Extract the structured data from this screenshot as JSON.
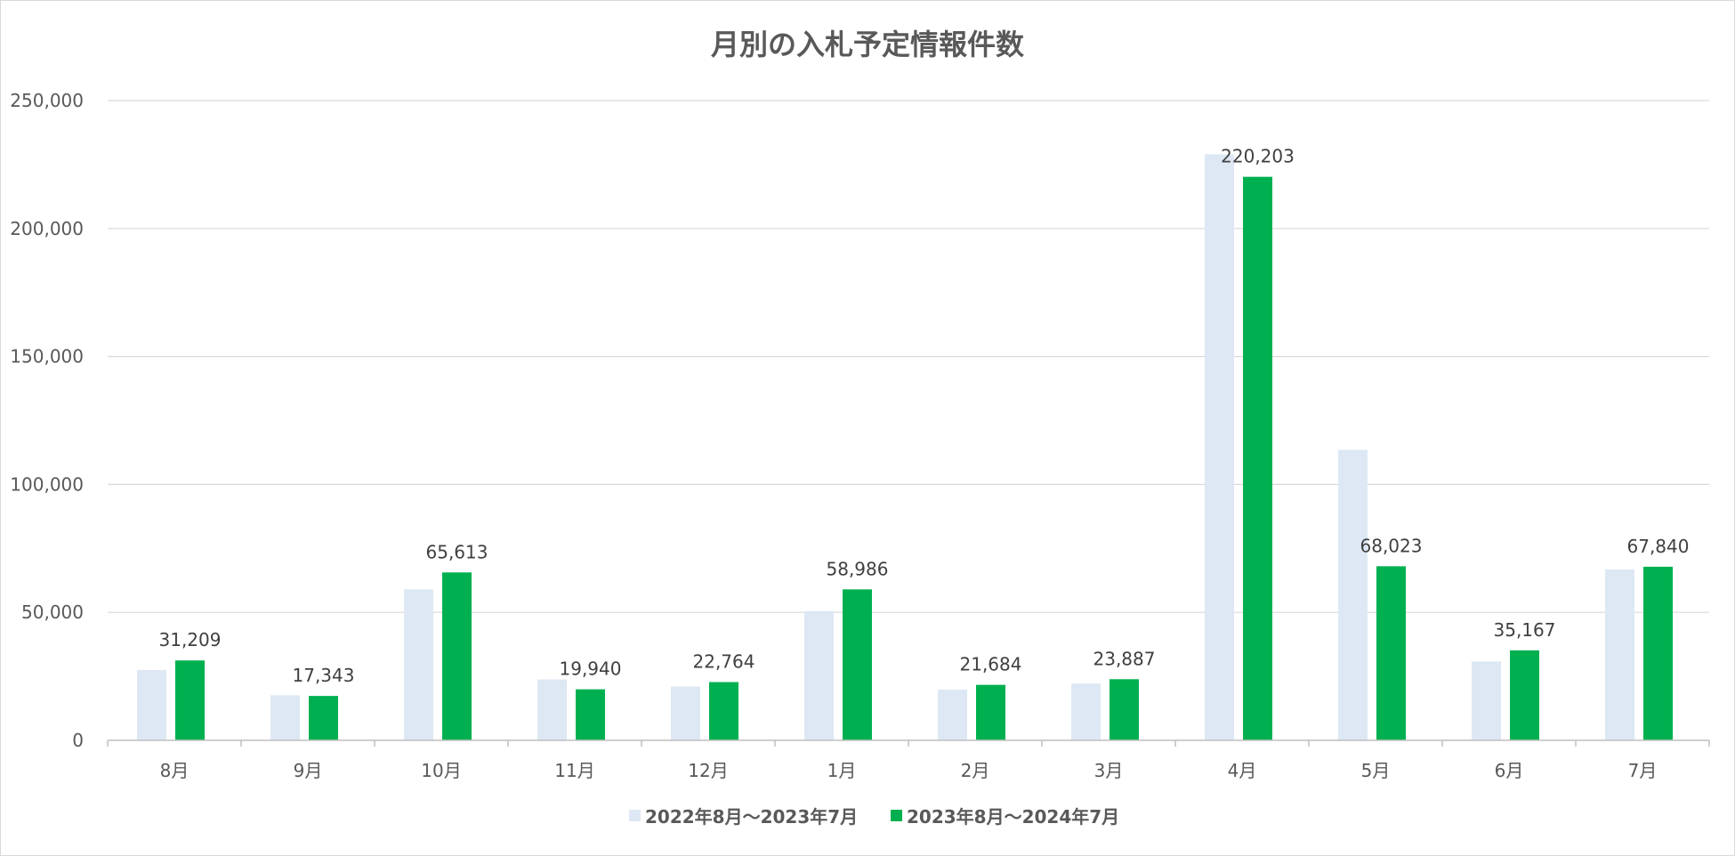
{
  "chart_data": {
    "type": "bar",
    "title": "月別の入札予定情報件数",
    "xlabel": "",
    "ylabel": "",
    "ylim": [
      0,
      250000
    ],
    "y_ticks": [
      0,
      50000,
      100000,
      150000,
      200000,
      250000
    ],
    "y_tick_labels": [
      "0",
      "50,000",
      "100,000",
      "150,000",
      "200,000",
      "250,000"
    ],
    "categories": [
      "8月",
      "9月",
      "10月",
      "11月",
      "12月",
      "1月",
      "2月",
      "3月",
      "4月",
      "5月",
      "6月",
      "7月"
    ],
    "series": [
      {
        "name": "2022年8月～2023年7月",
        "color": "#dde8f4",
        "values": [
          27500,
          17600,
          59000,
          23800,
          21000,
          50500,
          19800,
          22200,
          229000,
          113500,
          30800,
          66800
        ],
        "labels": null
      },
      {
        "name": "2023年8月～2024年7月",
        "color": "#00b050",
        "values": [
          31209,
          17343,
          65613,
          19940,
          22764,
          58986,
          21684,
          23887,
          220203,
          68023,
          35167,
          67840
        ],
        "labels": [
          "31,209",
          "17,343",
          "65,613",
          "19,940",
          "22,764",
          "58,986",
          "21,684",
          "23,887",
          "220,203",
          "68,023",
          "35,167",
          "67,840"
        ]
      }
    ],
    "grid": true,
    "gridline_color": "#d9d9d9",
    "legend_position": "bottom"
  }
}
